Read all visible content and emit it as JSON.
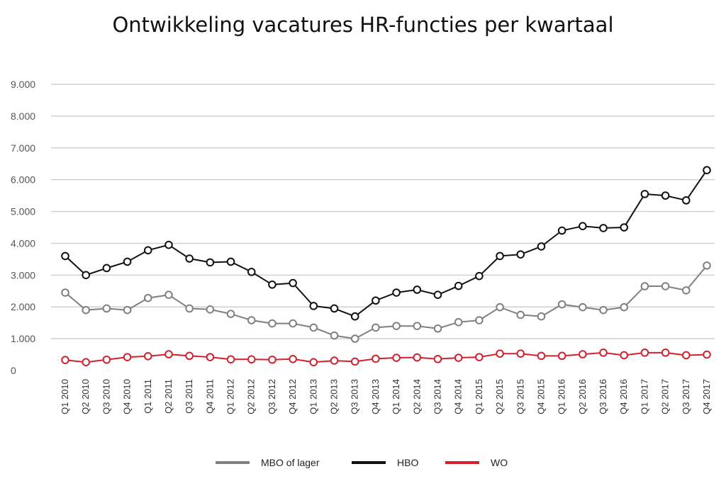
{
  "chart_data": {
    "type": "line",
    "title": "Ontwikkeling vacatures HR-functies per kwartaal",
    "xlabel": "",
    "ylabel": "",
    "ylim": [
      0,
      9000
    ],
    "yticks": [
      0,
      1000,
      2000,
      3000,
      4000,
      5000,
      6000,
      7000,
      8000,
      9000
    ],
    "ytick_labels": [
      "0",
      "1.000",
      "2.000",
      "3.000",
      "4.000",
      "5.000",
      "6.000",
      "7.000",
      "8.000",
      "9.000"
    ],
    "grid": "horizontal",
    "legend_position": "bottom",
    "categories": [
      "Q1 2010",
      "Q2 2010",
      "Q3 2010",
      "Q4 2010",
      "Q1 2011",
      "Q2 2011",
      "Q3 2011",
      "Q4 2011",
      "Q1 2012",
      "Q2 2012",
      "Q3 2012",
      "Q4 2012",
      "Q1 2013",
      "Q2 2013",
      "Q3 2013",
      "Q4 2013",
      "Q1 2014",
      "Q2 2014",
      "Q3 2014",
      "Q4 2014",
      "Q1 2015",
      "Q2 2015",
      "Q3 2015",
      "Q4 2015",
      "Q1 2016",
      "Q2 2016",
      "Q3 2016",
      "Q4 2016",
      "Q1 2017",
      "Q2 2017",
      "Q3 2017",
      "Q4 2017"
    ],
    "series": [
      {
        "name": "MBO of lager",
        "color": "#808080",
        "values": [
          2450,
          1900,
          1950,
          1900,
          2280,
          2380,
          1950,
          1920,
          1780,
          1580,
          1480,
          1480,
          1350,
          1100,
          1000,
          1350,
          1400,
          1400,
          1320,
          1520,
          1580,
          1990,
          1750,
          1700,
          2080,
          1990,
          1900,
          1990,
          2650,
          2650,
          2520,
          3300
        ]
      },
      {
        "name": "HBO",
        "color": "#111111",
        "values": [
          3600,
          3000,
          3220,
          3420,
          3780,
          3950,
          3520,
          3400,
          3420,
          3100,
          2700,
          2750,
          2030,
          1950,
          1700,
          2200,
          2450,
          2540,
          2380,
          2660,
          2970,
          3600,
          3650,
          3900,
          4400,
          4540,
          4480,
          4500,
          5550,
          5500,
          5350,
          6300
        ]
      },
      {
        "name": "WO",
        "color": "#d2202e",
        "values": [
          330,
          260,
          340,
          420,
          450,
          510,
          460,
          420,
          350,
          350,
          340,
          360,
          260,
          310,
          280,
          370,
          400,
          410,
          360,
          400,
          420,
          530,
          530,
          460,
          460,
          510,
          560,
          480,
          560,
          560,
          480,
          500
        ]
      }
    ]
  }
}
